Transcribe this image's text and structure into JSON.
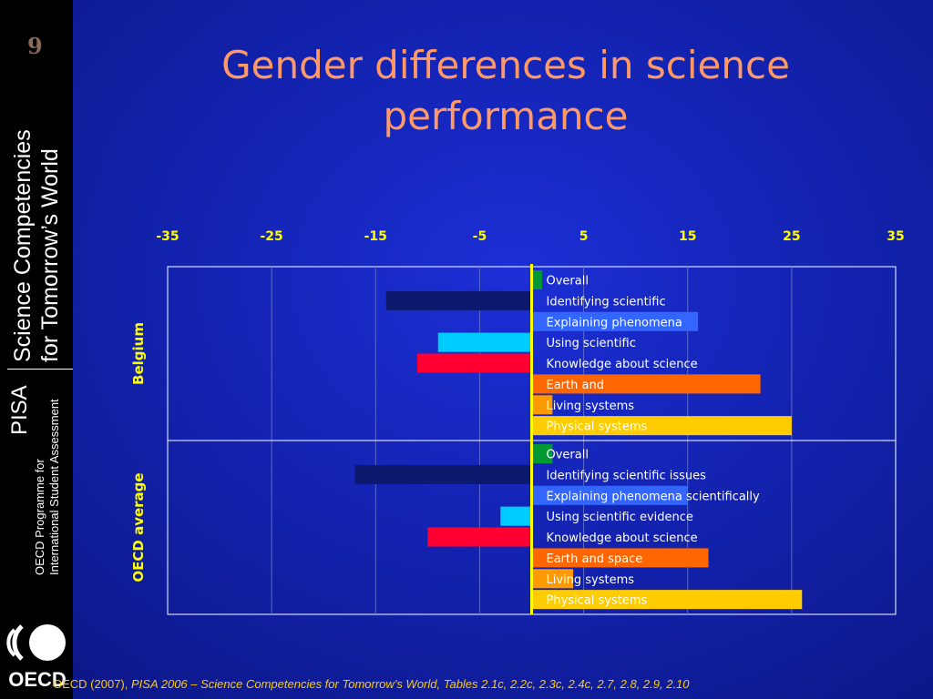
{
  "slide": {
    "number": "9",
    "title": "Gender differences in science performance",
    "sidebar": {
      "brand": "PISA",
      "subtitle_line1": "Science Competencies",
      "subtitle_line2": "for Tomorrow’s World",
      "programme_line1": "OECD Programme for",
      "programme_line2": "International Student Assessment",
      "logo_text": "OECD"
    },
    "source": {
      "prefix": "OECD (2007), ",
      "title": "PISA 2006 – Science Competencies for Tomorrow’s World, Tables 2.1c, 2.2c, 2.3c, 2.4c, 2.7, 2.8, 2.9, 2.10"
    }
  },
  "chart_data": {
    "type": "bar",
    "orientation": "horizontal",
    "xlim": [
      -35,
      35
    ],
    "x_ticks": [
      -35,
      -25,
      -15,
      -5,
      5,
      15,
      25,
      35
    ],
    "x_tick_position": "top",
    "grid": true,
    "groups": [
      {
        "name": "Belgium",
        "bars": [
          {
            "label": "Overall",
            "value": 1,
            "color": "#009933"
          },
          {
            "label": "Identifying scientific",
            "value": -14,
            "color": "#0b1a6e"
          },
          {
            "label": "Explaining phenomena",
            "value": 16,
            "color": "#3366ff"
          },
          {
            "label": "Using scientific",
            "value": -9,
            "color": "#00ccff"
          },
          {
            "label": "Knowledge about science",
            "value": -11,
            "color": "#ff0033"
          },
          {
            "label": "Earth and",
            "value": 22,
            "color": "#ff6600"
          },
          {
            "label": "Living systems",
            "value": 2,
            "color": "#ff9900"
          },
          {
            "label": "Physical systems",
            "value": 25,
            "color": "#ffcc00"
          }
        ]
      },
      {
        "name": "OECD average",
        "bars": [
          {
            "label": "Overall",
            "value": 2,
            "color": "#009933"
          },
          {
            "label": "Identifying scientific issues",
            "value": -17,
            "color": "#0b1a6e"
          },
          {
            "label": "Explaining phenomena scientifically",
            "value": 15,
            "color": "#3366ff"
          },
          {
            "label": "Using scientific evidence",
            "value": -3,
            "color": "#00ccff"
          },
          {
            "label": "Knowledge about science",
            "value": -10,
            "color": "#ff0033"
          },
          {
            "label": "Earth and space",
            "value": 17,
            "color": "#ff6600"
          },
          {
            "label": "Living systems",
            "value": 4,
            "color": "#ff9900"
          },
          {
            "label": "Physical systems",
            "value": 26,
            "color": "#ffcc00"
          }
        ]
      }
    ]
  }
}
